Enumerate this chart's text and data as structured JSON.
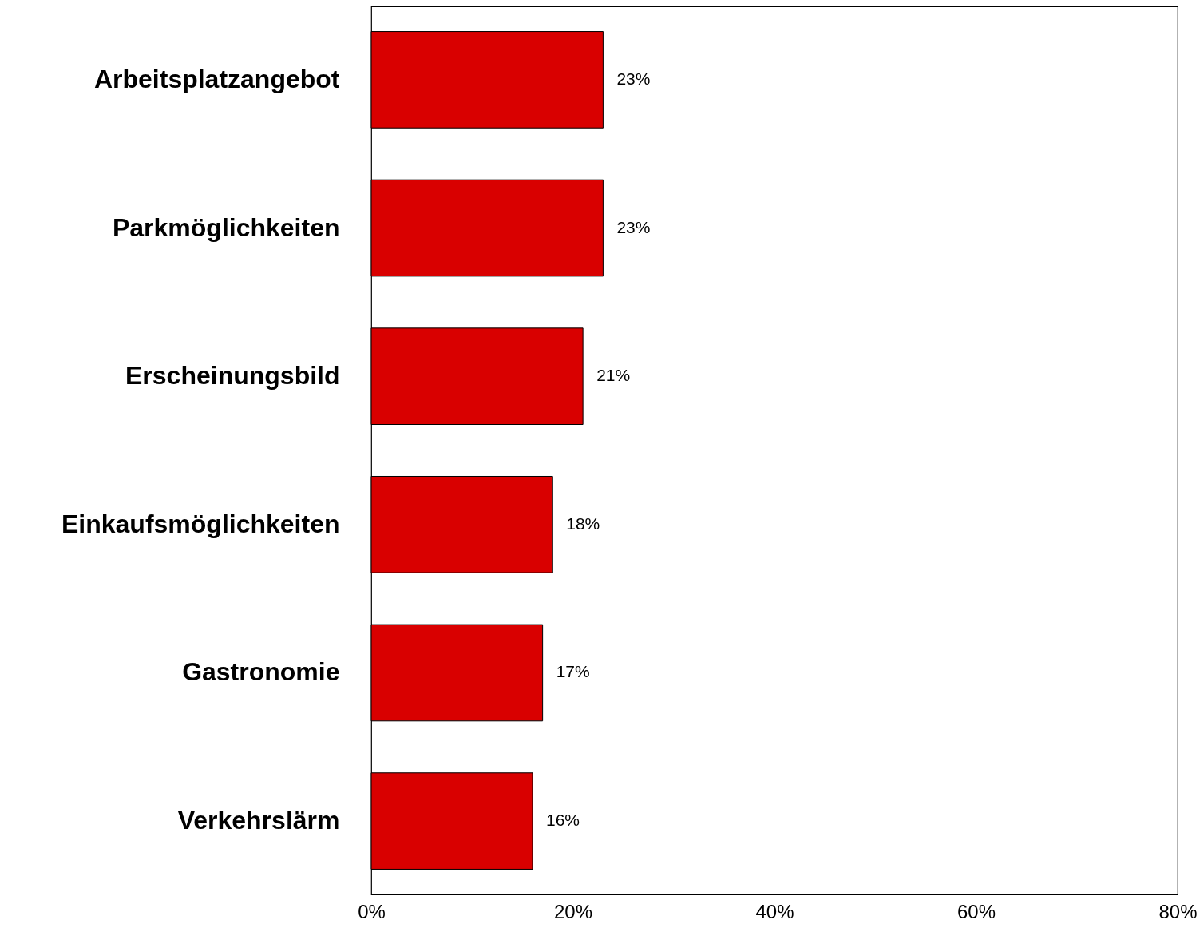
{
  "chart_data": {
    "type": "bar",
    "orientation": "horizontal",
    "categories": [
      "Arbeitsplatzangebot",
      "Parkmöglichkeiten",
      "Erscheinungsbild",
      "Einkaufsmöglichkeiten",
      "Gastronomie",
      "Verkehrslärm"
    ],
    "values": [
      23,
      23,
      21,
      18,
      17,
      16
    ],
    "value_labels": [
      "23%",
      "23%",
      "21%",
      "18%",
      "17%",
      "16%"
    ],
    "color": "#d90000",
    "xlim": [
      0,
      80
    ],
    "xticks": [
      {
        "value": 0,
        "label": "0%"
      },
      {
        "value": 20,
        "label": "20%"
      },
      {
        "value": 40,
        "label": "40%"
      },
      {
        "value": 60,
        "label": "60%"
      },
      {
        "value": 80,
        "label": "80%"
      }
    ],
    "grid": false
  }
}
